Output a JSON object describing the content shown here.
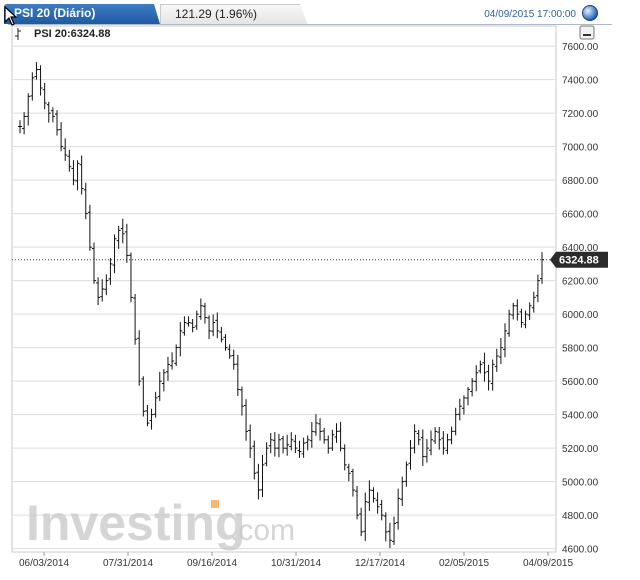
{
  "header": {
    "tab_title": "PSI 20 (Diário)",
    "change_text": "121.29 (1.96%)",
    "datetime": "04/09/2015 17:00:00"
  },
  "legend": {
    "label": "PSI 20:6324.88"
  },
  "watermark": {
    "brand": "Investing",
    "suffix": ".com"
  },
  "current_price_label": "6324.88",
  "colors": {
    "tab_blue": "#2a68b4",
    "price_tag": "#2b2b2b",
    "grid": "#d7d7d7",
    "bars": "#111111"
  },
  "icons": {
    "minimize": "minimize-icon",
    "globe": "globe-icon",
    "cursor": "cursor-arrow-icon"
  },
  "chart_data": {
    "type": "ohlc",
    "title": "PSI 20",
    "ylim": [
      4580,
      7720
    ],
    "y_ticks": [
      4600,
      4800,
      5000,
      5200,
      5400,
      5600,
      5800,
      6000,
      6200,
      6400,
      6600,
      6800,
      7000,
      7200,
      7400,
      7600
    ],
    "y_tick_labels": [
      "4600.00",
      "4800.00",
      "5000.00",
      "5200.00",
      "5400.00",
      "5600.00",
      "5800.00",
      "6000.00",
      "6200.00",
      "6400.00",
      "6600.00",
      "6800.00",
      "7000.00",
      "7200.00",
      "7400.00",
      "7600.00"
    ],
    "x_tick_labels": [
      "06/03/2014",
      "07/31/2014",
      "09/16/2014",
      "10/31/2014",
      "12/17/2014",
      "02/05/2015",
      "04/09/2015"
    ],
    "last_value": 6324.88,
    "close_series": [
      7120,
      7180,
      7300,
      7410,
      7460,
      7350,
      7260,
      7200,
      7180,
      7100,
      7000,
      6950,
      6880,
      6800,
      6900,
      6750,
      6600,
      6400,
      6200,
      6100,
      6150,
      6200,
      6300,
      6450,
      6500,
      6480,
      6350,
      6100,
      5850,
      5600,
      5420,
      5350,
      5400,
      5500,
      5600,
      5650,
      5700,
      5720,
      5800,
      5900,
      5950,
      5950,
      5920,
      6000,
      6050,
      5980,
      5900,
      5950,
      5900,
      5850,
      5800,
      5750,
      5700,
      5550,
      5450,
      5300,
      5200,
      5050,
      4950,
      5100,
      5200,
      5250,
      5200,
      5250,
      5200,
      5220,
      5250,
      5200,
      5180,
      5230,
      5250,
      5300,
      5350,
      5300,
      5250,
      5200,
      5280,
      5300,
      5200,
      5100,
      5050,
      4950,
      4800,
      4700,
      4880,
      4950,
      4900,
      4850,
      4800,
      4700,
      4650,
      4750,
      4900,
      5000,
      5100,
      5200,
      5300,
      5250,
      5150,
      5200,
      5250,
      5300,
      5250,
      5200,
      5250,
      5300,
      5400,
      5450,
      5500,
      5550,
      5600,
      5650,
      5700,
      5650,
      5600,
      5700,
      5750,
      5800,
      5900,
      6000,
      6050,
      6000,
      5950,
      6000,
      6050,
      6100,
      6200,
      6324.88
    ]
  }
}
